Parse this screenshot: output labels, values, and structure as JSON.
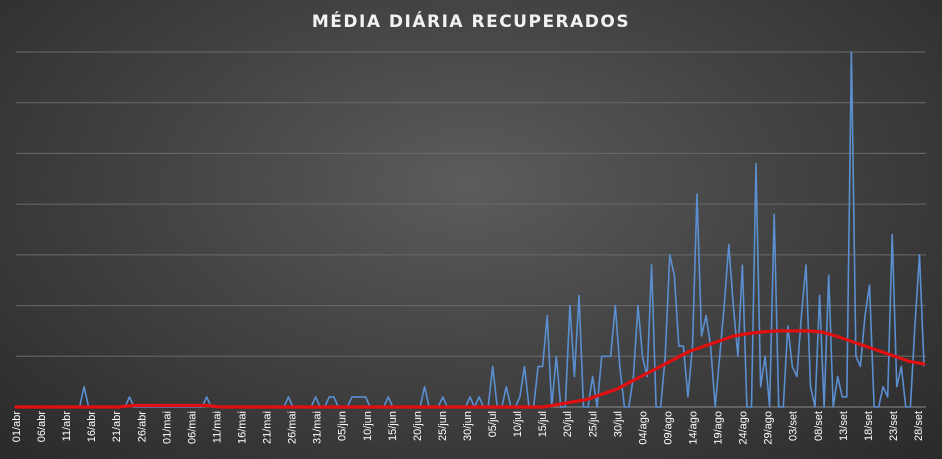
{
  "chart_data": {
    "type": "line",
    "title": "MÉDIA DIÁRIA RECUPERADOS",
    "xlabel": "",
    "ylabel": "",
    "ylim": [
      0,
      70
    ],
    "grid": true,
    "legend": "none",
    "x_tick_labels": [
      "01/abr",
      "06/abr",
      "11/abr",
      "16/abr",
      "21/abr",
      "26/abr",
      "01/mai",
      "06/mai",
      "11/mai",
      "16/mai",
      "21/mai",
      "26/mai",
      "31/mai",
      "05/jun",
      "10/jun",
      "15/jun",
      "20/jun",
      "25/jun",
      "30/jun",
      "05/jul",
      "10/jul",
      "15/jul",
      "20/jul",
      "25/jul",
      "30/jul",
      "04/ago",
      "09/ago",
      "14/ago",
      "19/ago",
      "24/ago",
      "29/ago",
      "03/set",
      "08/set",
      "13/set",
      "18/set",
      "23/set",
      "28/set"
    ],
    "colors": {
      "daily": "#5b8fd1",
      "trend": "#e01010",
      "grid": "#6a6a6a",
      "text": "#ffffff"
    },
    "series": [
      {
        "role": "daily",
        "values": [
          0,
          0,
          0,
          0,
          0,
          0,
          0,
          0,
          0,
          0,
          0,
          0,
          0,
          0,
          0,
          4,
          0,
          0,
          0,
          0,
          0,
          0,
          0,
          0,
          0,
          2,
          0,
          0,
          0,
          0,
          0,
          0,
          0,
          0,
          0,
          0,
          0,
          0,
          0,
          0,
          0,
          0,
          2,
          0,
          0,
          0,
          0,
          0,
          0,
          0,
          0,
          0,
          0,
          0,
          0,
          0,
          0,
          0,
          0,
          0,
          2,
          0,
          0,
          0,
          0,
          0,
          2,
          0,
          0,
          2,
          2,
          0,
          0,
          0,
          2,
          2,
          2,
          2,
          0,
          0,
          0,
          0,
          2,
          0,
          0,
          0,
          0,
          0,
          0,
          0,
          4,
          0,
          0,
          0,
          2,
          0,
          0,
          0,
          0,
          0,
          2,
          0,
          2,
          0,
          0,
          8,
          0,
          0,
          4,
          0,
          0,
          2,
          8,
          0,
          0,
          8,
          8,
          18,
          0,
          10,
          0,
          0,
          20,
          6,
          22,
          0,
          0,
          6,
          0,
          10,
          10,
          10,
          20,
          8,
          0,
          0,
          6,
          20,
          10,
          6,
          28,
          0,
          0,
          10,
          30,
          26,
          12,
          12,
          2,
          12,
          42,
          14,
          18,
          12,
          0,
          10,
          20,
          32,
          20,
          10,
          28,
          0,
          0,
          48,
          4,
          10,
          0,
          38,
          0,
          0,
          16,
          8,
          6,
          18,
          28,
          4,
          0,
          22,
          0,
          26,
          0,
          6,
          2,
          2,
          70,
          10,
          8,
          18,
          24,
          0,
          0,
          4,
          2,
          34,
          4,
          8,
          0,
          0,
          16,
          30,
          8
        ]
      },
      {
        "role": "trend",
        "values": [
          0,
          0,
          0,
          0,
          0,
          0,
          0,
          0,
          0.3,
          0.3,
          0.3,
          0.3,
          0.3,
          0.3,
          0,
          0,
          0,
          0,
          0,
          0,
          0,
          0,
          0,
          0,
          0,
          0,
          0,
          0,
          0,
          0,
          0,
          0,
          0,
          0,
          0,
          0,
          0,
          0.5,
          1.0,
          1.5,
          2.5,
          3.5,
          5.0,
          6.5,
          8.0,
          9.5,
          11.0,
          12.0,
          13.0,
          14.0,
          14.5,
          14.8,
          15.0,
          15.0,
          15.0,
          14.8,
          14.0,
          13.0,
          12.0,
          11.0,
          10.0,
          9.0,
          8.5
        ]
      }
    ]
  }
}
